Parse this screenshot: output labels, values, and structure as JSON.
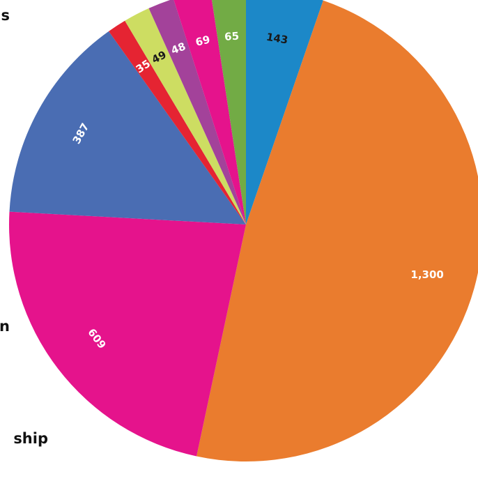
{
  "chart_data": {
    "type": "pie",
    "title": "",
    "start_angle_deg": 0,
    "direction": "clockwise",
    "legend": "none",
    "slices": [
      {
        "label": "143",
        "value": 143,
        "color": "#1c88c8",
        "text_color": "#1a1a1a"
      },
      {
        "label": "1,300",
        "value": 1300,
        "color": "#ea7c2e",
        "text_color": "#ffffff"
      },
      {
        "label": "609",
        "value": 609,
        "color": "#e5138c",
        "text_color": "#ffffff"
      },
      {
        "label": "387",
        "value": 387,
        "color": "#4a6db3",
        "text_color": "#ffffff"
      },
      {
        "label": "35",
        "value": 35,
        "color": "#e52432",
        "text_color": "#ffffff"
      },
      {
        "label": "49",
        "value": 49,
        "color": "#cddd62",
        "text_color": "#1a1a1a"
      },
      {
        "label": "48",
        "value": 48,
        "color": "#a3429a",
        "text_color": "#ffffff"
      },
      {
        "label": "69",
        "value": 69,
        "color": "#e5138c",
        "text_color": "#ffffff"
      },
      {
        "label": "65",
        "value": 65,
        "color": "#72ab45",
        "text_color": "#ffffff"
      }
    ],
    "clipped_category_text": [
      "s",
      "n",
      "ship"
    ]
  }
}
